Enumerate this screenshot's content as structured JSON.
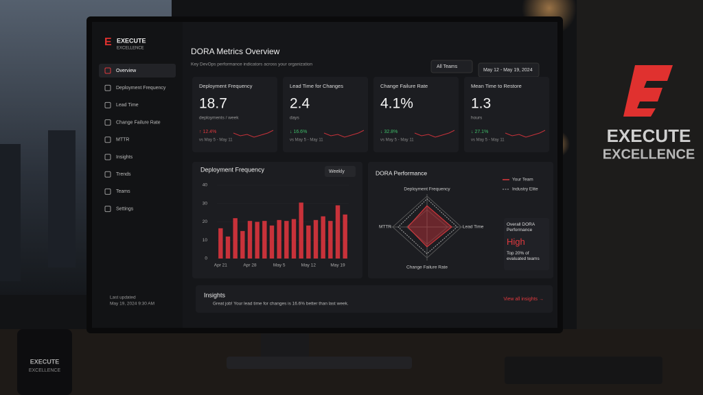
{
  "brand": {
    "name": "EXECUTE",
    "sub": "EXCELLENCE"
  },
  "header": {
    "title": "DORA Metrics Overview",
    "subtitle": "Key DevOps performance indicators across your organization",
    "team_filter": "All Teams",
    "date_range": "May 12 - May 19, 2024"
  },
  "nav": [
    "Overview",
    "Deployment Frequency",
    "Lead Time",
    "Change Failure Rate",
    "MTTR",
    "Insights",
    "Trends",
    "Teams",
    "Settings"
  ],
  "last_updated": {
    "label": "Last updated",
    "value": "May 19, 2024 9:30 AM"
  },
  "cards": [
    {
      "title": "Deployment Frequency",
      "value": "18.7",
      "unit": "deployments / week",
      "change": "↑ 12.4%",
      "period": "vs May 5 - May 11"
    },
    {
      "title": "Lead Time for Changes",
      "value": "2.4",
      "unit": "days",
      "change": "↓ 16.6%",
      "period": "vs May 5 - May 11"
    },
    {
      "title": "Change Failure Rate",
      "value": "4.1%",
      "change": "↓ 32.8%",
      "period": "vs May 5 - May 11"
    },
    {
      "title": "Mean Time to Restore",
      "value": "1.3",
      "unit": "hours",
      "change": "↓ 27.1%",
      "period": "vs May 5 - May 11"
    }
  ],
  "chart_data": {
    "type": "bar",
    "title": "Deployment Frequency",
    "period_select": "Weekly",
    "color": "#c8323a",
    "categories": [
      "Apr 21",
      null,
      null,
      null,
      "Apr 28",
      null,
      null,
      null,
      "May 5",
      null,
      null,
      null,
      "May 12",
      null,
      null,
      null,
      "May 19",
      null
    ],
    "values": [
      16.5,
      12,
      22,
      15,
      20.5,
      20,
      20.5,
      18,
      21,
      20.5,
      21.5,
      30.5,
      18,
      21,
      23,
      20.5,
      29,
      24
    ],
    "ylim": [
      0,
      40
    ],
    "yticks": [
      0,
      10,
      20,
      30,
      40
    ]
  },
  "radar": {
    "title": "DORA Performance",
    "legend": [
      "Your Team",
      "Industry Elite"
    ],
    "axes": [
      "Deployment Frequency",
      "Lead Time",
      "Change Failure Rate",
      "MTTR"
    ],
    "overall_label": "Overall DORA Performance",
    "overall_value": "High",
    "overall_note": "Top 20% of evaluated teams"
  },
  "insights": {
    "title": "Insights",
    "message": "Great job! Your lead time for changes is 16.6% better than last week.",
    "link": "View all insights →"
  },
  "wall_sign": {
    "name": "EXECUTE",
    "sub": "EXCELLENCE"
  },
  "mug": {
    "name": "EXECUTE",
    "sub": "EXCELLENCE"
  }
}
